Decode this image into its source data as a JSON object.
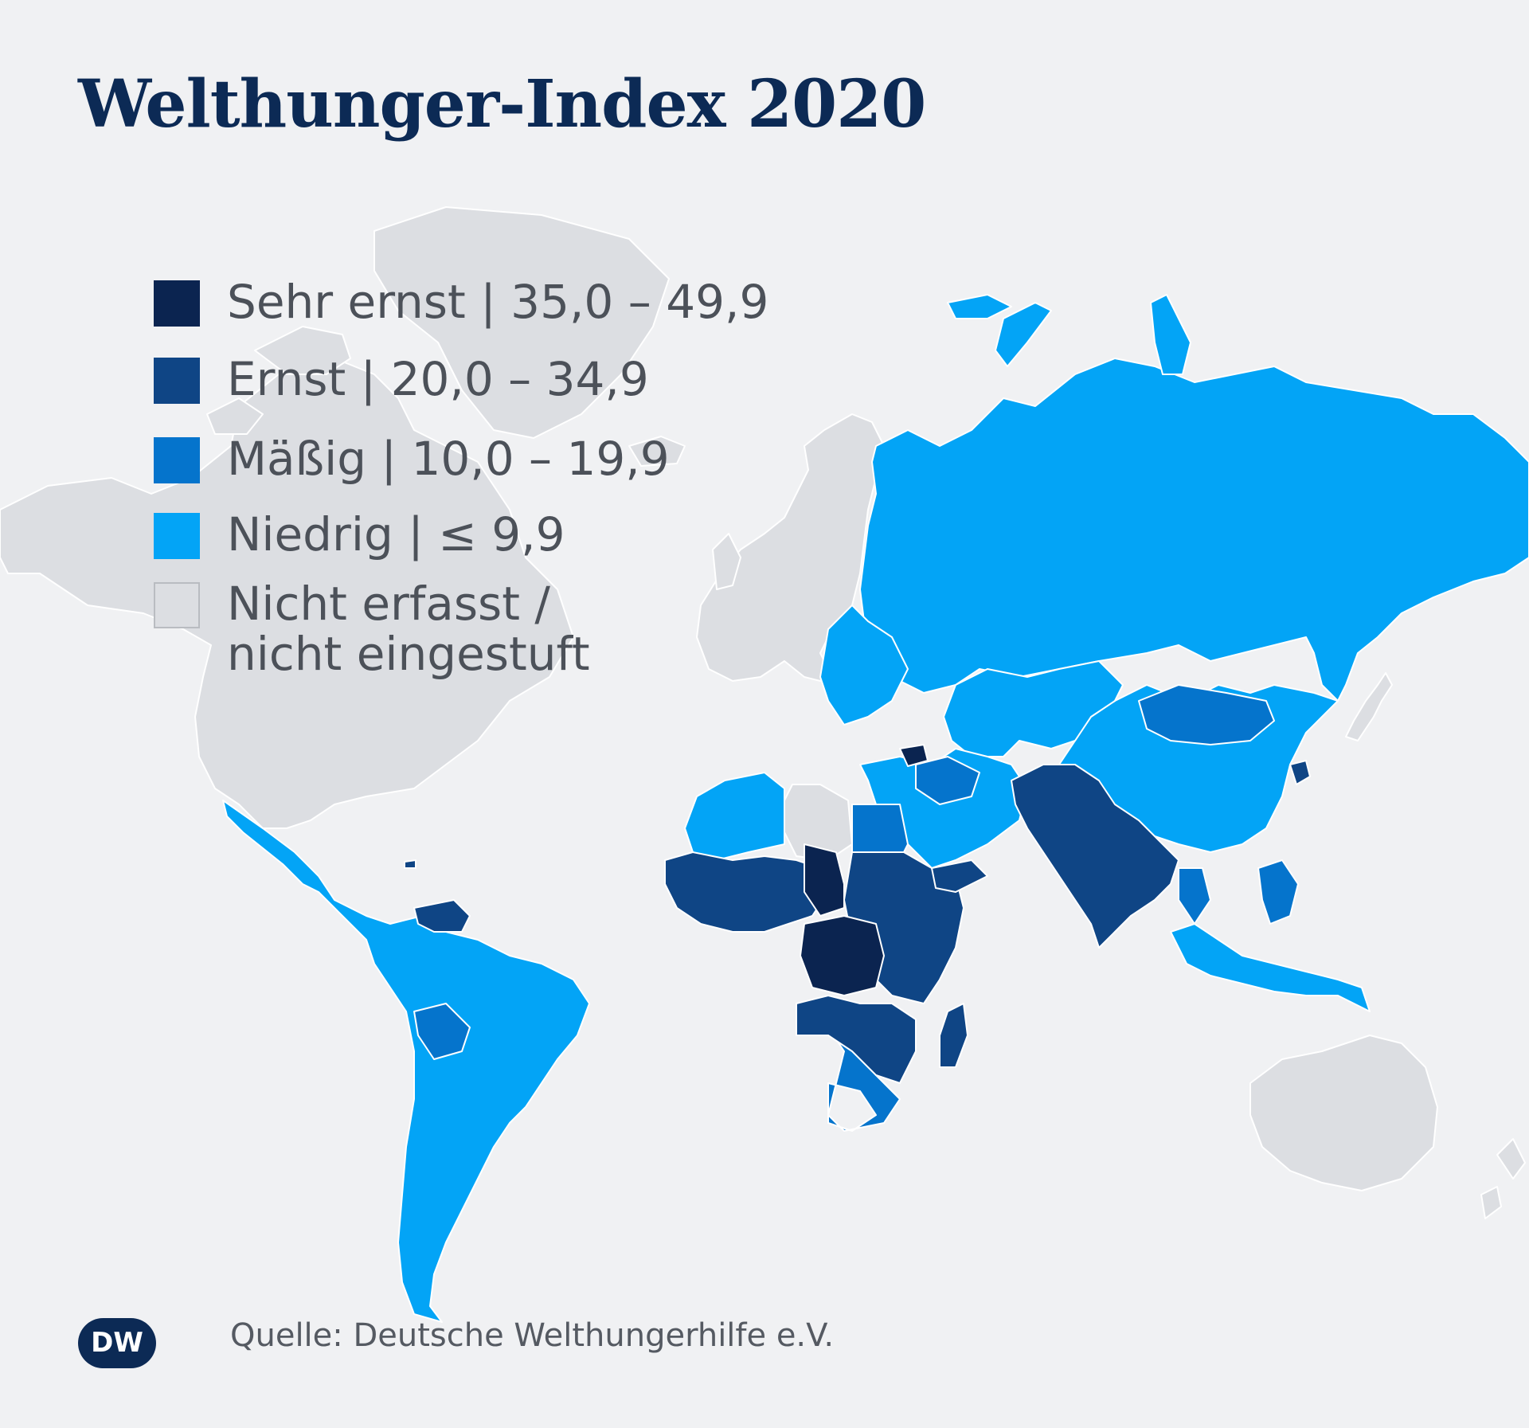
{
  "title": "Welthunger-Index 2020",
  "legend": [
    {
      "label": "Sehr ernst | 35,0 – 49,9",
      "color": "#0b2450"
    },
    {
      "label": "Ernst | 20,0 – 34,9",
      "color": "#0f4585"
    },
    {
      "label": "Mäßig | 10,0 – 19,9",
      "color": "#0574cc"
    },
    {
      "label": "Niedrig | ≤ 9,9",
      "color": "#03a4f6"
    },
    {
      "label": "Nicht erfasst /\nnicht eingestuft",
      "color": "#dcdee2"
    }
  ],
  "source": "Quelle: Deutsche Welthungerhilfe e.V.",
  "logo": {
    "text": "DW",
    "color": "#0c2a55"
  },
  "colors": {
    "background": "#f0f1f3",
    "border": "#ffffff"
  }
}
